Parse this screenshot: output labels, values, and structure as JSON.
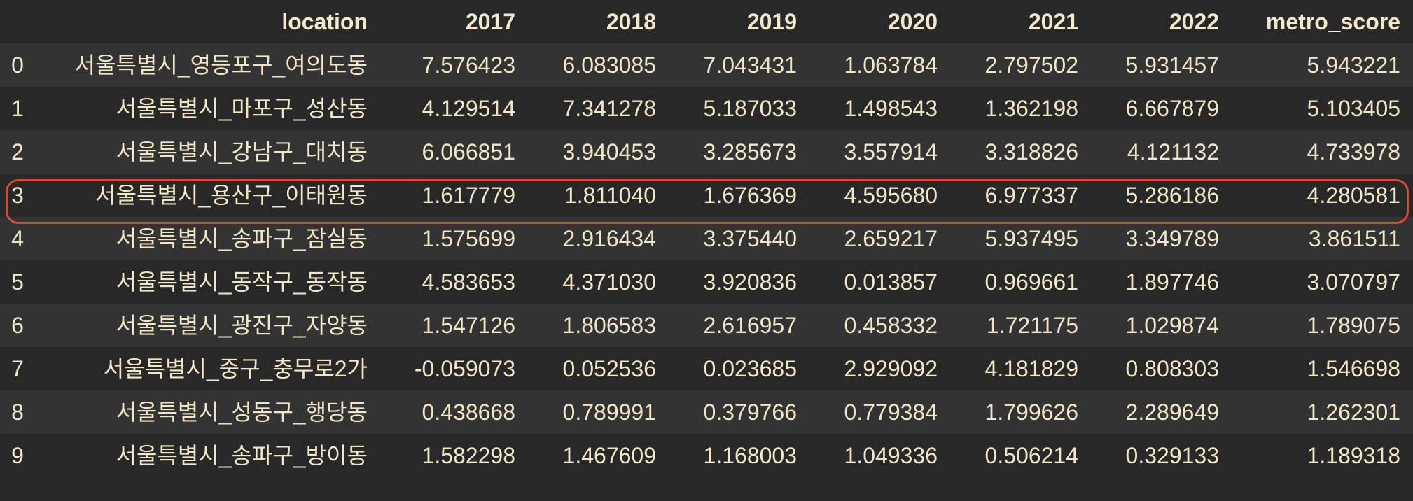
{
  "dataframe": {
    "columns": [
      "",
      "location",
      "2017",
      "2018",
      "2019",
      "2020",
      "2021",
      "2022",
      "metro_score"
    ],
    "rows": [
      {
        "index": "0",
        "location": "서울특별시_영등포구_여의도동",
        "v2017": "7.576423",
        "v2018": "6.083085",
        "v2019": "7.043431",
        "v2020": "1.063784",
        "v2021": "2.797502",
        "v2022": "5.931457",
        "metro_score": "5.943221"
      },
      {
        "index": "1",
        "location": "서울특별시_마포구_성산동",
        "v2017": "4.129514",
        "v2018": "7.341278",
        "v2019": "5.187033",
        "v2020": "1.498543",
        "v2021": "1.362198",
        "v2022": "6.667879",
        "metro_score": "5.103405"
      },
      {
        "index": "2",
        "location": "서울특별시_강남구_대치동",
        "v2017": "6.066851",
        "v2018": "3.940453",
        "v2019": "3.285673",
        "v2020": "3.557914",
        "v2021": "3.318826",
        "v2022": "4.121132",
        "metro_score": "4.733978"
      },
      {
        "index": "3",
        "location": "서울특별시_용산구_이태원동",
        "v2017": "1.617779",
        "v2018": "1.811040",
        "v2019": "1.676369",
        "v2020": "4.595680",
        "v2021": "6.977337",
        "v2022": "5.286186",
        "metro_score": "4.280581"
      },
      {
        "index": "4",
        "location": "서울특별시_송파구_잠실동",
        "v2017": "1.575699",
        "v2018": "2.916434",
        "v2019": "3.375440",
        "v2020": "2.659217",
        "v2021": "5.937495",
        "v2022": "3.349789",
        "metro_score": "3.861511"
      },
      {
        "index": "5",
        "location": "서울특별시_동작구_동작동",
        "v2017": "4.583653",
        "v2018": "4.371030",
        "v2019": "3.920836",
        "v2020": "0.013857",
        "v2021": "0.969661",
        "v2022": "1.897746",
        "metro_score": "3.070797"
      },
      {
        "index": "6",
        "location": "서울특별시_광진구_자양동",
        "v2017": "1.547126",
        "v2018": "1.806583",
        "v2019": "2.616957",
        "v2020": "0.458332",
        "v2021": "1.721175",
        "v2022": "1.029874",
        "metro_score": "1.789075"
      },
      {
        "index": "7",
        "location": "서울특별시_중구_충무로2가",
        "v2017": "-0.059073",
        "v2018": "0.052536",
        "v2019": "0.023685",
        "v2020": "2.929092",
        "v2021": "4.181829",
        "v2022": "0.808303",
        "metro_score": "1.546698"
      },
      {
        "index": "8",
        "location": "서울특별시_성동구_행당동",
        "v2017": "0.438668",
        "v2018": "0.789991",
        "v2019": "0.379766",
        "v2020": "0.779384",
        "v2021": "1.799626",
        "v2022": "2.289649",
        "metro_score": "1.262301"
      },
      {
        "index": "9",
        "location": "서울특별시_송파구_방이동",
        "v2017": "1.582298",
        "v2018": "1.467609",
        "v2019": "1.168003",
        "v2020": "1.049336",
        "v2021": "0.506214",
        "v2022": "0.329133",
        "metro_score": "1.189318"
      }
    ]
  },
  "colors": {
    "background": "#282828",
    "row_stripe": "#333333",
    "text": "#f1e6c8",
    "highlight": "#d24a38"
  }
}
